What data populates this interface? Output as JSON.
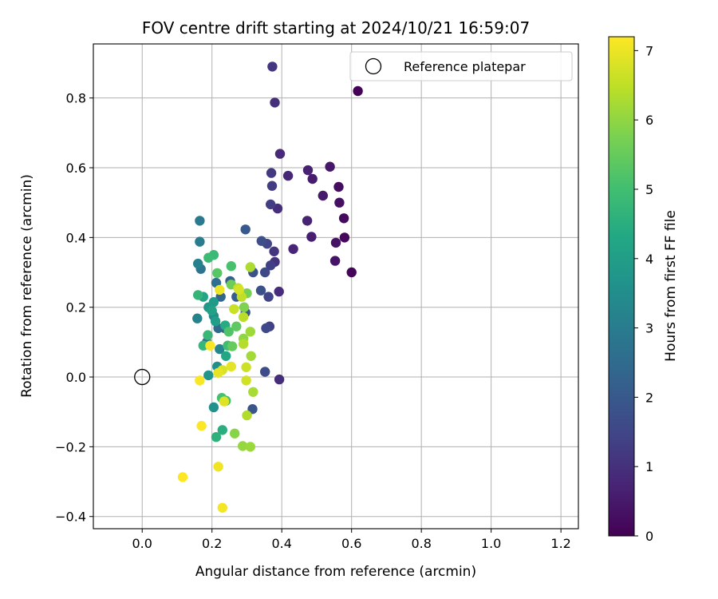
{
  "chart_data": {
    "type": "scatter",
    "title": "FOV centre drift starting at 2024/10/21 16:59:07",
    "xlabel": "Angular distance from reference (arcmin)",
    "ylabel": "Rotation from reference (arcmin)",
    "xlim": [
      -0.14,
      1.25
    ],
    "ylim": [
      -0.435,
      0.955
    ],
    "xticks": [
      0.0,
      0.2,
      0.4,
      0.6,
      0.8,
      1.0,
      1.2
    ],
    "xtick_labels": [
      "0.0",
      "0.2",
      "0.4",
      "0.6",
      "0.8",
      "1.0",
      "1.2"
    ],
    "yticks": [
      -0.4,
      -0.2,
      0.0,
      0.2,
      0.4,
      0.6,
      0.8
    ],
    "ytick_labels": [
      "−0.4",
      "−0.2",
      "0.0",
      "0.2",
      "0.4",
      "0.6",
      "0.8"
    ],
    "grid": true,
    "legend": {
      "placement": "top-right",
      "label": "Reference platepar"
    },
    "reference_point": {
      "x": 0.0,
      "y": 0.0
    },
    "colorbar": {
      "label": "Hours from first FF file",
      "range": [
        0,
        7.2
      ],
      "ticks": [
        0,
        1,
        2,
        3,
        4,
        5,
        6,
        7
      ],
      "tick_labels": [
        "0",
        "1",
        "2",
        "3",
        "4",
        "5",
        "6",
        "7"
      ],
      "colormap": "viridis"
    },
    "points": [
      [
        0.618,
        0.82,
        0.05
      ],
      [
        0.6,
        0.3,
        0.1
      ],
      [
        0.58,
        0.4,
        0.15
      ],
      [
        0.578,
        0.455,
        0.2
      ],
      [
        0.563,
        0.545,
        0.25
      ],
      [
        0.565,
        0.5,
        0.3
      ],
      [
        0.555,
        0.385,
        0.35
      ],
      [
        0.553,
        0.333,
        0.4
      ],
      [
        0.538,
        0.603,
        0.45
      ],
      [
        0.518,
        0.52,
        0.5
      ],
      [
        0.488,
        0.568,
        0.55
      ],
      [
        0.485,
        0.402,
        0.6
      ],
      [
        0.475,
        0.593,
        0.65
      ],
      [
        0.473,
        0.448,
        0.7
      ],
      [
        0.433,
        0.367,
        0.75
      ],
      [
        0.418,
        0.577,
        0.8
      ],
      [
        0.395,
        0.64,
        0.85
      ],
      [
        0.392,
        0.245,
        0.9
      ],
      [
        0.393,
        -0.007,
        0.92
      ],
      [
        0.388,
        0.483,
        0.95
      ],
      [
        0.38,
        0.787,
        1.0
      ],
      [
        0.38,
        0.33,
        1.05
      ],
      [
        0.378,
        0.36,
        1.1
      ],
      [
        0.373,
        0.89,
        1.15
      ],
      [
        0.37,
        0.585,
        1.2
      ],
      [
        0.372,
        0.548,
        1.25
      ],
      [
        0.368,
        0.495,
        1.3
      ],
      [
        0.368,
        0.32,
        1.35
      ],
      [
        0.365,
        0.145,
        1.4
      ],
      [
        0.362,
        0.23,
        1.45
      ],
      [
        0.358,
        0.382,
        1.5
      ],
      [
        0.355,
        0.14,
        1.55
      ],
      [
        0.352,
        0.3,
        1.6
      ],
      [
        0.352,
        0.015,
        1.65
      ],
      [
        0.342,
        0.39,
        1.7
      ],
      [
        0.34,
        0.248,
        1.75
      ],
      [
        0.318,
        0.3,
        1.8
      ],
      [
        0.316,
        -0.092,
        1.9
      ],
      [
        0.296,
        0.185,
        1.95
      ],
      [
        0.296,
        0.423,
        2.0
      ],
      [
        0.27,
        0.23,
        2.1
      ],
      [
        0.252,
        0.275,
        2.2
      ],
      [
        0.236,
        0.14,
        2.3
      ],
      [
        0.225,
        0.23,
        2.4
      ],
      [
        0.218,
        0.14,
        2.5
      ],
      [
        0.212,
        0.27,
        2.6
      ],
      [
        0.185,
        0.1,
        2.7
      ],
      [
        0.168,
        0.31,
        2.8
      ],
      [
        0.165,
        0.448,
        2.9
      ],
      [
        0.165,
        0.388,
        3.0
      ],
      [
        0.16,
        0.325,
        3.1
      ],
      [
        0.158,
        0.168,
        3.2
      ],
      [
        0.222,
        0.08,
        3.3
      ],
      [
        0.205,
        0.175,
        3.4
      ],
      [
        0.215,
        0.03,
        3.5
      ],
      [
        0.205,
        -0.087,
        3.6
      ],
      [
        0.19,
        0.005,
        3.7
      ],
      [
        0.19,
        0.2,
        3.8
      ],
      [
        0.205,
        0.215,
        3.9
      ],
      [
        0.21,
        0.16,
        4.0
      ],
      [
        0.2,
        0.19,
        4.1
      ],
      [
        0.175,
        0.23,
        4.2
      ],
      [
        0.24,
        0.06,
        4.3
      ],
      [
        0.238,
        0.148,
        4.4
      ],
      [
        0.23,
        -0.152,
        4.5
      ],
      [
        0.212,
        -0.172,
        4.6
      ],
      [
        0.16,
        0.235,
        4.7
      ],
      [
        0.175,
        0.09,
        4.75
      ],
      [
        0.188,
        0.12,
        4.8
      ],
      [
        0.205,
        0.35,
        4.85
      ],
      [
        0.19,
        0.342,
        4.9
      ],
      [
        0.245,
        0.09,
        4.95
      ],
      [
        0.24,
        -0.068,
        5.0
      ],
      [
        0.228,
        -0.06,
        5.05
      ],
      [
        0.255,
        0.318,
        5.1
      ],
      [
        0.248,
        0.13,
        5.2
      ],
      [
        0.215,
        0.298,
        5.3
      ],
      [
        0.27,
        0.145,
        5.4
      ],
      [
        0.258,
        0.088,
        5.5
      ],
      [
        0.255,
        0.265,
        5.6
      ],
      [
        0.3,
        0.24,
        5.7
      ],
      [
        0.292,
        0.2,
        5.8
      ],
      [
        0.265,
        -0.162,
        5.9
      ],
      [
        0.29,
        0.11,
        6.0
      ],
      [
        0.288,
        -0.198,
        6.05
      ],
      [
        0.31,
        -0.2,
        6.1
      ],
      [
        0.31,
        0.13,
        6.15
      ],
      [
        0.312,
        0.06,
        6.2
      ],
      [
        0.318,
        -0.043,
        6.25
      ],
      [
        0.31,
        0.315,
        6.3
      ],
      [
        0.3,
        -0.11,
        6.35
      ],
      [
        0.29,
        0.095,
        6.4
      ],
      [
        0.29,
        0.172,
        6.45
      ],
      [
        0.285,
        0.23,
        6.5
      ],
      [
        0.275,
        0.255,
        6.55
      ],
      [
        0.263,
        0.195,
        6.6
      ],
      [
        0.298,
        0.028,
        6.65
      ],
      [
        0.298,
        -0.01,
        6.7
      ],
      [
        0.278,
        0.25,
        6.75
      ],
      [
        0.23,
        0.02,
        6.8
      ],
      [
        0.235,
        -0.07,
        6.85
      ],
      [
        0.255,
        0.03,
        6.9
      ],
      [
        0.218,
        0.012,
        6.95
      ],
      [
        0.222,
        0.25,
        7.0
      ],
      [
        0.218,
        -0.257,
        7.05
      ],
      [
        0.23,
        -0.375,
        7.1
      ],
      [
        0.195,
        0.09,
        7.12
      ],
      [
        0.165,
        -0.01,
        7.15
      ],
      [
        0.17,
        -0.14,
        7.18
      ],
      [
        0.116,
        -0.287,
        7.2
      ]
    ]
  }
}
